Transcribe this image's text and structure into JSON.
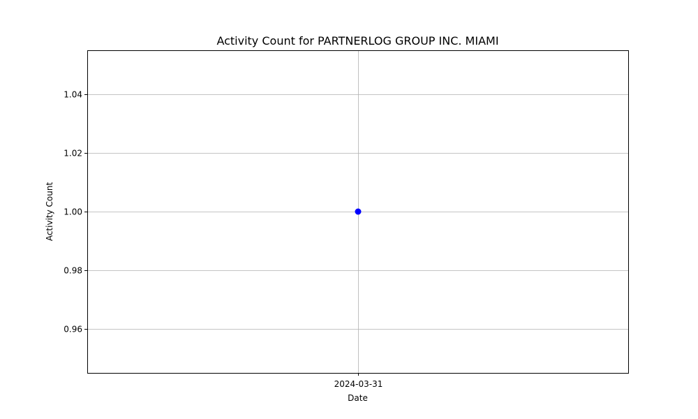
{
  "chart_data": {
    "type": "line",
    "title": "Activity Count for PARTNERLOG GROUP INC. MIAMI",
    "xlabel": "Date",
    "ylabel": "Activity Count",
    "x": [
      "2024-03-31"
    ],
    "x_tick_labels": [
      "2024-03-31"
    ],
    "series": [
      {
        "values": [
          1.0
        ],
        "color": "#0000ff",
        "marker": "circle"
      }
    ],
    "ylim": [
      0.945,
      1.055
    ],
    "y_ticks": [
      0.96,
      0.98,
      1.0,
      1.02,
      1.04
    ],
    "y_tick_labels": [
      "0.96",
      "0.98",
      "1.00",
      "1.02",
      "1.04"
    ],
    "grid": true,
    "grid_color": "#b0b0b0"
  }
}
